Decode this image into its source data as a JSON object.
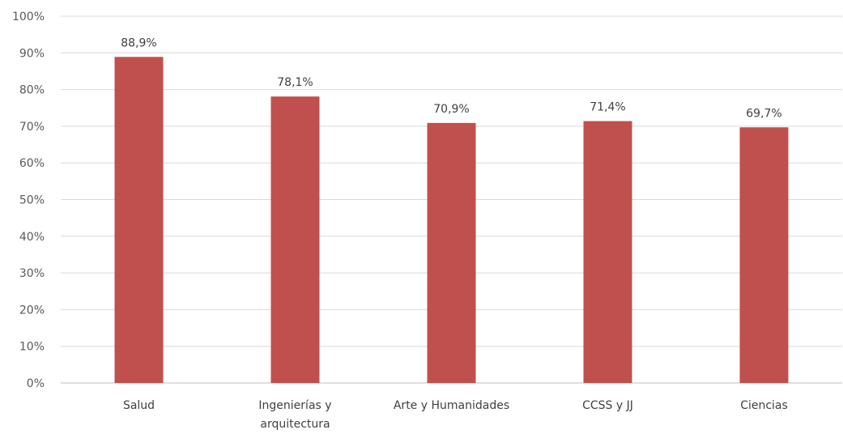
{
  "chart_data": {
    "type": "bar",
    "title": "",
    "xlabel": "",
    "ylabel": "",
    "ylim": [
      0,
      100
    ],
    "y_ticks": [
      "0%",
      "10%",
      "20%",
      "30%",
      "40%",
      "50%",
      "60%",
      "70%",
      "80%",
      "90%",
      "100%"
    ],
    "categories": [
      [
        "Salud"
      ],
      [
        "Ingenierías y",
        "arquitectura"
      ],
      [
        "Arte y Humanidades"
      ],
      [
        "CCSS y JJ"
      ],
      [
        "Ciencias"
      ]
    ],
    "values": [
      88.9,
      78.1,
      70.9,
      71.4,
      69.7
    ],
    "data_labels": [
      "88,9%",
      "78,1%",
      "70,9%",
      "71,4%",
      "69,7%"
    ],
    "grid": true,
    "legend": "none",
    "colors": {
      "bar": "#C0504D",
      "grid": "#D9D9D9",
      "axis": "#BFBFBF"
    }
  }
}
